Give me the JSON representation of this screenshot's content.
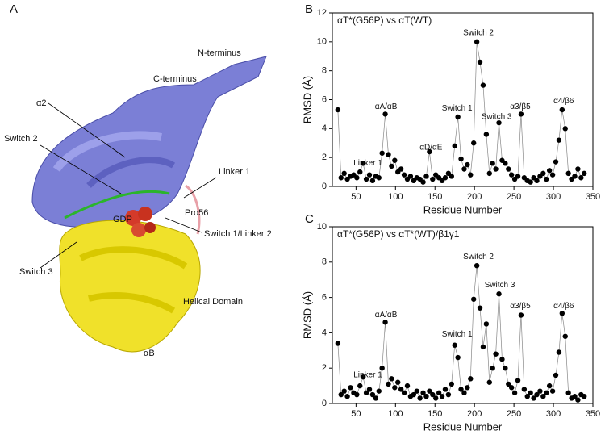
{
  "figure": {
    "panel_labels": [
      "A",
      "B",
      "C"
    ],
    "structure_labels": [
      "N-terminus",
      "C-terminus",
      "α2",
      "Switch 2",
      "Linker 1",
      "Pro56",
      "GDP",
      "Switch 1/Linker 2",
      "Switch 3",
      "Helical Domain",
      "αB"
    ]
  },
  "chart_data": [
    {
      "type": "scatter-line",
      "title": "αT*(G56P) vs αT(WT)",
      "x_label": "Residue Number",
      "y_label": "RMSD (Å)",
      "color": "#000000",
      "xlim": [
        20,
        350
      ],
      "xticks": [
        50,
        100,
        150,
        200,
        250,
        300,
        350
      ],
      "ylim": [
        0,
        12
      ],
      "yticks": [
        0,
        2,
        4,
        6,
        8,
        10,
        12
      ],
      "annotations": [
        "Linker 1",
        "αA/αB",
        "αD/αE",
        "Switch 1",
        "Switch 2",
        "Switch 3",
        "α3/β5",
        "α4/β6"
      ],
      "x": [
        27,
        31,
        35,
        39,
        43,
        47,
        51,
        55,
        59,
        63,
        67,
        71,
        75,
        79,
        83,
        87,
        91,
        95,
        99,
        103,
        107,
        111,
        115,
        119,
        123,
        127,
        131,
        135,
        139,
        143,
        147,
        151,
        155,
        159,
        163,
        167,
        171,
        175,
        179,
        183,
        187,
        191,
        195,
        199,
        203,
        207,
        211,
        215,
        219,
        223,
        227,
        231,
        235,
        239,
        243,
        247,
        251,
        255,
        259,
        263,
        267,
        271,
        275,
        279,
        283,
        287,
        291,
        295,
        299,
        303,
        307,
        311,
        315,
        319,
        323,
        327,
        331,
        335,
        339
      ],
      "values": [
        5.3,
        0.6,
        0.9,
        0.5,
        0.7,
        0.8,
        0.6,
        1.0,
        1.6,
        0.5,
        0.8,
        0.4,
        0.7,
        0.6,
        2.3,
        5.0,
        2.2,
        1.4,
        1.8,
        1.0,
        1.2,
        0.8,
        0.5,
        0.7,
        0.4,
        0.6,
        0.5,
        0.3,
        0.7,
        2.4,
        0.5,
        0.8,
        0.6,
        0.4,
        0.6,
        0.9,
        0.7,
        2.8,
        4.8,
        1.9,
        1.2,
        1.5,
        0.8,
        3.0,
        10.0,
        8.6,
        7.0,
        3.6,
        0.9,
        1.6,
        1.2,
        4.4,
        1.8,
        1.6,
        1.2,
        0.8,
        0.5,
        0.7,
        5.0,
        0.6,
        0.4,
        0.3,
        0.6,
        0.4,
        0.7,
        0.9,
        0.5,
        1.1,
        0.8,
        1.7,
        3.2,
        5.3,
        4.0,
        0.9,
        0.5,
        0.7,
        1.2,
        0.6,
        0.9
      ]
    },
    {
      "type": "scatter-line",
      "title": "αT*(G56P) vs αT*(WT)/β1γ1",
      "x_label": "Residue Number",
      "y_label": "RMSD (Å)",
      "color": "#000000",
      "xlim": [
        20,
        350
      ],
      "xticks": [
        50,
        100,
        150,
        200,
        250,
        300,
        350
      ],
      "ylim": [
        0,
        10
      ],
      "yticks": [
        0,
        2,
        4,
        6,
        8,
        10
      ],
      "annotations": [
        "Linker 1",
        "αA/αB",
        "Switch 1",
        "Switch 2",
        "Switch 3",
        "α3/β5",
        "α4/β6"
      ],
      "x": [
        27,
        31,
        35,
        39,
        43,
        47,
        51,
        55,
        59,
        63,
        67,
        71,
        75,
        79,
        83,
        87,
        91,
        95,
        99,
        103,
        107,
        111,
        115,
        119,
        123,
        127,
        131,
        135,
        139,
        143,
        147,
        151,
        155,
        159,
        163,
        167,
        171,
        175,
        179,
        183,
        187,
        191,
        195,
        199,
        203,
        207,
        211,
        215,
        219,
        223,
        227,
        231,
        235,
        239,
        243,
        247,
        251,
        255,
        259,
        263,
        267,
        271,
        275,
        279,
        283,
        287,
        291,
        295,
        299,
        303,
        307,
        311,
        315,
        319,
        323,
        327,
        331,
        335,
        339
      ],
      "values": [
        3.4,
        0.5,
        0.7,
        0.4,
        0.9,
        0.6,
        0.5,
        1.0,
        1.5,
        0.6,
        0.8,
        0.5,
        0.3,
        0.7,
        2.0,
        4.6,
        1.1,
        1.4,
        0.9,
        1.2,
        0.8,
        0.6,
        1.0,
        0.4,
        0.5,
        0.7,
        0.3,
        0.6,
        0.4,
        0.7,
        0.5,
        0.3,
        0.6,
        0.4,
        0.8,
        0.5,
        1.1,
        3.3,
        2.6,
        0.8,
        0.6,
        0.9,
        1.4,
        5.9,
        7.8,
        5.4,
        3.2,
        4.5,
        1.2,
        2.0,
        2.8,
        6.2,
        2.5,
        2.0,
        1.1,
        0.9,
        0.6,
        1.3,
        5.0,
        0.8,
        0.4,
        0.6,
        0.3,
        0.5,
        0.7,
        0.4,
        0.6,
        1.0,
        0.7,
        1.6,
        2.9,
        5.1,
        3.8,
        0.6,
        0.3,
        0.4,
        0.2,
        0.5,
        0.4
      ]
    }
  ]
}
